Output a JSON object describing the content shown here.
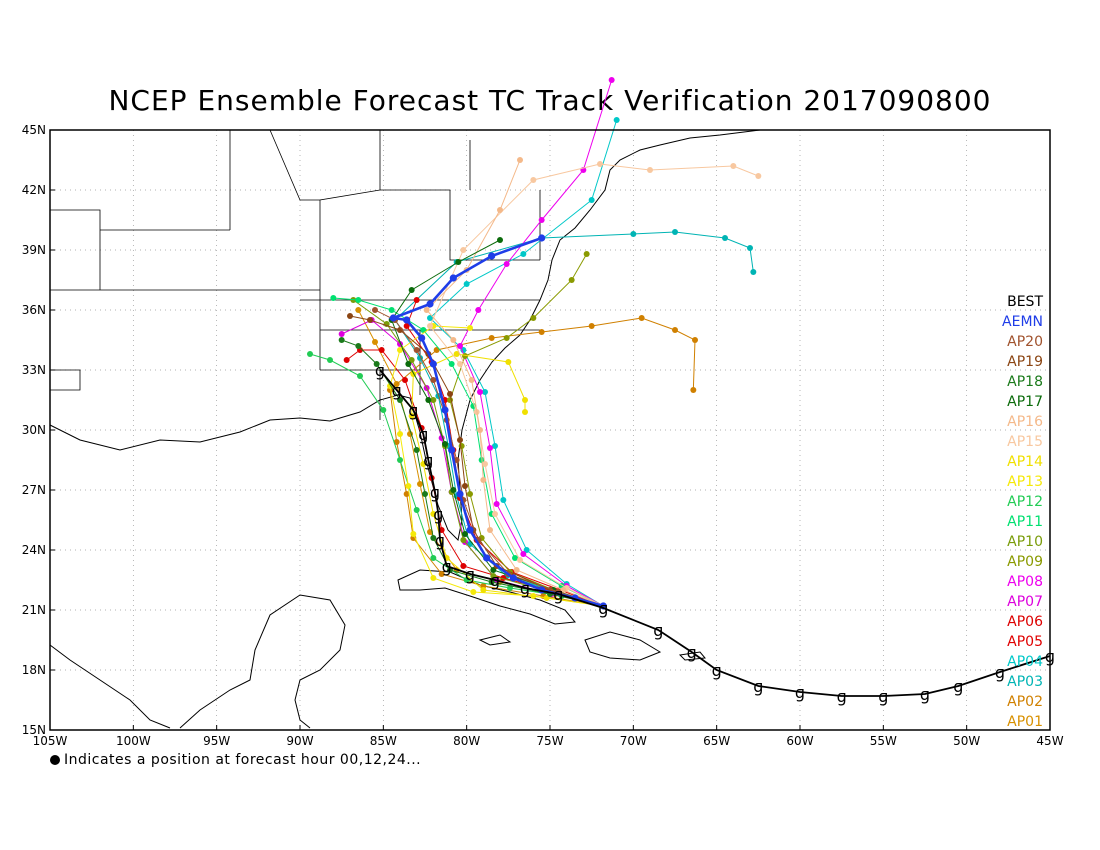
{
  "title": "NCEP Ensemble Forecast TC Track Verification 2017090800",
  "footnote": "Indicates a position at forecast hour 00,12,24...",
  "lat_labels": [
    "45N",
    "42N",
    "39N",
    "36N",
    "33N",
    "30N",
    "27N",
    "24N",
    "21N",
    "18N",
    "15N"
  ],
  "lon_labels": [
    "105W",
    "100W",
    "95W",
    "90W",
    "85W",
    "80W",
    "75W",
    "70W",
    "65W",
    "60W",
    "55W",
    "50W",
    "45W"
  ],
  "legend": [
    {
      "label": "BEST",
      "color": "#000000"
    },
    {
      "label": "AEMN",
      "color": "#1f3de8"
    },
    {
      "label": "AP20",
      "color": "#a0522d"
    },
    {
      "label": "AP19",
      "color": "#8b4513"
    },
    {
      "label": "AP18",
      "color": "#1b7a1b"
    },
    {
      "label": "AP17",
      "color": "#0b6b0b"
    },
    {
      "label": "AP16",
      "color": "#f4b98a"
    },
    {
      "label": "AP15",
      "color": "#f8c8a0"
    },
    {
      "label": "AP14",
      "color": "#f0e000"
    },
    {
      "label": "AP13",
      "color": "#f5e90a"
    },
    {
      "label": "AP12",
      "color": "#22cc55"
    },
    {
      "label": "AP11",
      "color": "#00e070"
    },
    {
      "label": "AP10",
      "color": "#7a9c0a"
    },
    {
      "label": "AP09",
      "color": "#8a9a00"
    },
    {
      "label": "AP08",
      "color": "#ee00ee"
    },
    {
      "label": "AP07",
      "color": "#dd00dd"
    },
    {
      "label": "AP06",
      "color": "#dd0000"
    },
    {
      "label": "AP05",
      "color": "#e00000"
    },
    {
      "label": "AP04",
      "color": "#00c8c8"
    },
    {
      "label": "AP03",
      "color": "#00b4b4"
    },
    {
      "label": "AP02",
      "color": "#d08000"
    },
    {
      "label": "AP01",
      "color": "#d89000"
    }
  ],
  "colors": {
    "grid": "#999999",
    "coast": "#000000",
    "frame": "#000000"
  },
  "tracks": [
    {
      "name": "BEST",
      "color": "#000000",
      "width": 1.8,
      "hurricane_symbols": true,
      "points": [
        [
          -45,
          18.7
        ],
        [
          -48,
          17.9
        ],
        [
          -50.5,
          17.2
        ],
        [
          -52.5,
          16.8
        ],
        [
          -55,
          16.7
        ],
        [
          -57.5,
          16.7
        ],
        [
          -60,
          16.9
        ],
        [
          -62.5,
          17.2
        ],
        [
          -65,
          18.0
        ],
        [
          -66.5,
          18.9
        ],
        [
          -68.5,
          20.0
        ],
        [
          -71.8,
          21.1
        ],
        [
          -74.5,
          21.8
        ],
        [
          -76.5,
          22.1
        ],
        [
          -78.3,
          22.5
        ],
        [
          -79.8,
          22.8
        ],
        [
          -81.2,
          23.2
        ],
        [
          -81.6,
          24.5
        ],
        [
          -81.7,
          25.8
        ],
        [
          -81.9,
          26.9
        ],
        [
          -82.3,
          28.5
        ],
        [
          -82.6,
          29.8
        ],
        [
          -83.2,
          31.0
        ],
        [
          -84.2,
          32.0
        ],
        [
          -85.2,
          33.0
        ]
      ]
    },
    {
      "name": "AEMN",
      "color": "#1f3de8",
      "width": 2.6,
      "points": [
        [
          -71.8,
          21.2
        ],
        [
          -73.5,
          21.6
        ],
        [
          -75.5,
          22.0
        ],
        [
          -77.2,
          22.6
        ],
        [
          -78.8,
          23.6
        ],
        [
          -79.8,
          25.0
        ],
        [
          -80.4,
          26.8
        ],
        [
          -80.9,
          29.0
        ],
        [
          -81.3,
          31.0
        ],
        [
          -82.0,
          33.3
        ],
        [
          -82.7,
          34.6
        ],
        [
          -83.6,
          35.5
        ],
        [
          -84.4,
          35.6
        ],
        [
          -82.2,
          36.3
        ],
        [
          -80.8,
          37.6
        ],
        [
          -78.5,
          38.7
        ],
        [
          -75.5,
          39.6
        ]
      ]
    },
    {
      "name": "AP20",
      "color": "#a0522d",
      "width": 1,
      "points": [
        [
          -71.8,
          21.2
        ],
        [
          -74.5,
          21.9
        ],
        [
          -77.5,
          22.8
        ],
        [
          -79.3,
          24.5
        ],
        [
          -80.2,
          26.5
        ],
        [
          -80.6,
          28.5
        ],
        [
          -81.2,
          30.5
        ],
        [
          -82.0,
          32.5
        ],
        [
          -83.0,
          34.0
        ],
        [
          -84.3,
          35.5
        ],
        [
          -85.5,
          36.0
        ]
      ]
    },
    {
      "name": "AP19",
      "color": "#8b4513",
      "width": 1,
      "points": [
        [
          -71.8,
          21.2
        ],
        [
          -75,
          22.0
        ],
        [
          -78.2,
          23.2
        ],
        [
          -79.6,
          25.0
        ],
        [
          -80.1,
          27.2
        ],
        [
          -80.4,
          29.5
        ],
        [
          -81.0,
          31.8
        ],
        [
          -82.3,
          33.8
        ],
        [
          -84.0,
          35.0
        ],
        [
          -85.8,
          35.5
        ],
        [
          -87.0,
          35.7
        ]
      ]
    },
    {
      "name": "AP18",
      "color": "#1b7a1b",
      "width": 1,
      "points": [
        [
          -71.8,
          21.2
        ],
        [
          -75,
          21.8
        ],
        [
          -78.5,
          22.4
        ],
        [
          -81.0,
          23.0
        ],
        [
          -82.0,
          24.6
        ],
        [
          -82.5,
          26.8
        ],
        [
          -83.0,
          29.0
        ],
        [
          -84.0,
          31.5
        ],
        [
          -85.4,
          33.3
        ],
        [
          -86.5,
          34.2
        ],
        [
          -87.5,
          34.5
        ]
      ]
    },
    {
      "name": "AP17",
      "color": "#0b6b0b",
      "width": 1,
      "points": [
        [
          -71.8,
          21.2
        ],
        [
          -74.8,
          22.0
        ],
        [
          -78.4,
          23.0
        ],
        [
          -80.1,
          24.8
        ],
        [
          -80.8,
          27.0
        ],
        [
          -81.3,
          29.3
        ],
        [
          -82.3,
          31.5
        ],
        [
          -83.5,
          33.3
        ],
        [
          -84.5,
          35.5
        ],
        [
          -83.3,
          37.0
        ],
        [
          -80.5,
          38.4
        ],
        [
          -78.0,
          39.5
        ]
      ]
    },
    {
      "name": "AP16",
      "color": "#f4b98a",
      "width": 1,
      "points": [
        [
          -71.8,
          21.2
        ],
        [
          -74.2,
          22.0
        ],
        [
          -77.0,
          23.0
        ],
        [
          -78.6,
          25.0
        ],
        [
          -79.0,
          27.5
        ],
        [
          -79.2,
          30.0
        ],
        [
          -79.7,
          32.5
        ],
        [
          -80.8,
          34.5
        ],
        [
          -82.4,
          36.0
        ],
        [
          -80.0,
          38.0
        ],
        [
          -78.0,
          41.0
        ],
        [
          -76.8,
          43.5
        ]
      ]
    },
    {
      "name": "AP15",
      "color": "#f8c8a0",
      "width": 1,
      "points": [
        [
          -71.8,
          21.2
        ],
        [
          -74.0,
          22.1
        ],
        [
          -76.8,
          23.5
        ],
        [
          -78.3,
          25.8
        ],
        [
          -78.9,
          28.3
        ],
        [
          -79.4,
          30.9
        ],
        [
          -80.4,
          33.3
        ],
        [
          -82.2,
          35.2
        ],
        [
          -80.2,
          39.0
        ],
        [
          -76.0,
          42.5
        ],
        [
          -72.0,
          43.3
        ],
        [
          -69.0,
          43.0
        ],
        [
          -64.0,
          43.2
        ],
        [
          -62.5,
          42.7
        ]
      ]
    },
    {
      "name": "AP14",
      "color": "#f0e000",
      "width": 1,
      "points": [
        [
          -71.8,
          21.2
        ],
        [
          -75.2,
          21.6
        ],
        [
          -79.0,
          22.0
        ],
        [
          -81.2,
          23.6
        ],
        [
          -82.0,
          25.8
        ],
        [
          -82.6,
          28.3
        ],
        [
          -83.3,
          30.7
        ],
        [
          -83.2,
          32.8
        ],
        [
          -80.6,
          33.8
        ],
        [
          -77.5,
          33.4
        ],
        [
          -76.5,
          31.5
        ],
        [
          -76.5,
          30.9
        ]
      ]
    },
    {
      "name": "AP13",
      "color": "#f5e90a",
      "width": 1,
      "points": [
        [
          -71.8,
          21.2
        ],
        [
          -76.0,
          21.7
        ],
        [
          -79.6,
          21.9
        ],
        [
          -82.0,
          22.6
        ],
        [
          -83.2,
          24.8
        ],
        [
          -83.5,
          27.2
        ],
        [
          -84.0,
          29.8
        ],
        [
          -84.6,
          32.2
        ],
        [
          -84.0,
          34.0
        ],
        [
          -82.0,
          35.2
        ],
        [
          -79.8,
          35.1
        ]
      ]
    },
    {
      "name": "AP12",
      "color": "#22cc55",
      "width": 1,
      "points": [
        [
          -71.8,
          21.2
        ],
        [
          -74.3,
          21.7
        ],
        [
          -77.4,
          22.1
        ],
        [
          -80.0,
          22.5
        ],
        [
          -82.0,
          23.6
        ],
        [
          -83.0,
          26.0
        ],
        [
          -84.0,
          28.5
        ],
        [
          -85.0,
          31.0
        ],
        [
          -86.4,
          32.7
        ],
        [
          -88.2,
          33.5
        ],
        [
          -89.4,
          33.8
        ]
      ]
    },
    {
      "name": "AP11",
      "color": "#00e070",
      "width": 1,
      "points": [
        [
          -71.8,
          21.2
        ],
        [
          -74.3,
          22.2
        ],
        [
          -77.1,
          23.6
        ],
        [
          -78.5,
          25.8
        ],
        [
          -79.1,
          28.5
        ],
        [
          -79.6,
          31.2
        ],
        [
          -80.9,
          33.3
        ],
        [
          -82.6,
          35.0
        ],
        [
          -84.5,
          36.0
        ],
        [
          -86.5,
          36.5
        ],
        [
          -88.0,
          36.6
        ]
      ]
    },
    {
      "name": "AP10",
      "color": "#7a9c0a",
      "width": 1,
      "points": [
        [
          -71.8,
          21.2
        ],
        [
          -75.0,
          21.9
        ],
        [
          -78.4,
          22.7
        ],
        [
          -80.2,
          24.5
        ],
        [
          -80.9,
          26.9
        ],
        [
          -81.3,
          29.2
        ],
        [
          -82.0,
          31.5
        ],
        [
          -83.3,
          33.5
        ],
        [
          -84.8,
          35.3
        ],
        [
          -86.8,
          36.5
        ]
      ]
    },
    {
      "name": "AP09",
      "color": "#8a9a00",
      "width": 1,
      "points": [
        [
          -71.8,
          21.2
        ],
        [
          -74.5,
          21.9
        ],
        [
          -77.4,
          22.9
        ],
        [
          -79.1,
          24.6
        ],
        [
          -79.8,
          26.8
        ],
        [
          -80.3,
          29.2
        ],
        [
          -81.0,
          31.5
        ],
        [
          -80.1,
          33.7
        ],
        [
          -77.6,
          34.6
        ],
        [
          -76.0,
          35.6
        ],
        [
          -73.7,
          37.5
        ],
        [
          -72.8,
          38.8
        ]
      ]
    },
    {
      "name": "AP08",
      "color": "#ee00ee",
      "width": 1,
      "points": [
        [
          -71.8,
          21.2
        ],
        [
          -74.0,
          22.2
        ],
        [
          -76.6,
          23.8
        ],
        [
          -78.2,
          26.3
        ],
        [
          -78.6,
          29.1
        ],
        [
          -79.2,
          31.9
        ],
        [
          -80.4,
          34.2
        ],
        [
          -79.3,
          36.0
        ],
        [
          -77.6,
          38.3
        ],
        [
          -75.5,
          40.5
        ],
        [
          -73.0,
          43.0
        ],
        [
          -71.3,
          47.5
        ]
      ]
    },
    {
      "name": "AP07",
      "color": "#dd00dd",
      "width": 1,
      "points": [
        [
          -71.8,
          21.2
        ],
        [
          -74.9,
          21.8
        ],
        [
          -78.2,
          22.5
        ],
        [
          -80.1,
          24.4
        ],
        [
          -80.9,
          26.9
        ],
        [
          -81.5,
          29.6
        ],
        [
          -82.4,
          32.1
        ],
        [
          -84.0,
          34.3
        ],
        [
          -85.7,
          35.5
        ],
        [
          -87.5,
          34.8
        ]
      ]
    },
    {
      "name": "AP06",
      "color": "#dd0000",
      "width": 1,
      "points": [
        [
          -71.8,
          21.2
        ],
        [
          -74.6,
          21.9
        ],
        [
          -77.8,
          22.6
        ],
        [
          -80.2,
          23.2
        ],
        [
          -81.5,
          25.0
        ],
        [
          -82.1,
          27.6
        ],
        [
          -82.7,
          30.1
        ],
        [
          -83.7,
          32.5
        ],
        [
          -85.1,
          34.0
        ],
        [
          -86.4,
          34.0
        ],
        [
          -87.2,
          33.5
        ]
      ]
    },
    {
      "name": "AP05",
      "color": "#e00000",
      "width": 1,
      "points": [
        [
          -71.8,
          21.2
        ],
        [
          -74.4,
          22.0
        ],
        [
          -77.3,
          22.9
        ],
        [
          -79.4,
          24.5
        ],
        [
          -80.4,
          26.6
        ],
        [
          -80.8,
          29.0
        ],
        [
          -81.3,
          31.5
        ],
        [
          -82.1,
          33.4
        ],
        [
          -83.6,
          35.2
        ],
        [
          -83.0,
          36.5
        ]
      ]
    },
    {
      "name": "AP04",
      "color": "#00c8c8",
      "width": 1,
      "points": [
        [
          -71.8,
          21.2
        ],
        [
          -74.0,
          22.3
        ],
        [
          -76.4,
          24.0
        ],
        [
          -77.8,
          26.5
        ],
        [
          -78.3,
          29.2
        ],
        [
          -78.9,
          31.9
        ],
        [
          -80.2,
          34.0
        ],
        [
          -82.2,
          35.6
        ],
        [
          -80.0,
          37.3
        ],
        [
          -76.6,
          38.8
        ],
        [
          -72.5,
          41.5
        ],
        [
          -71.0,
          45.5
        ]
      ]
    },
    {
      "name": "AP03",
      "color": "#00b4b4",
      "width": 1,
      "points": [
        [
          -71.8,
          21.2
        ],
        [
          -74.6,
          21.9
        ],
        [
          -77.6,
          22.7
        ],
        [
          -79.8,
          24.3
        ],
        [
          -80.6,
          26.7
        ],
        [
          -81.1,
          29.2
        ],
        [
          -81.7,
          31.7
        ],
        [
          -82.8,
          33.6
        ],
        [
          -84.3,
          35.5
        ],
        [
          -80.6,
          38.4
        ],
        [
          -75.5,
          39.6
        ],
        [
          -70.0,
          39.8
        ],
        [
          -67.5,
          39.9
        ],
        [
          -64.5,
          39.6
        ],
        [
          -63.0,
          39.1
        ],
        [
          -62.8,
          37.9
        ]
      ]
    },
    {
      "name": "AP02",
      "color": "#d08000",
      "width": 1,
      "points": [
        [
          -71.8,
          21.2
        ],
        [
          -75.4,
          21.7
        ],
        [
          -79.0,
          22.2
        ],
        [
          -81.5,
          22.8
        ],
        [
          -83.2,
          24.6
        ],
        [
          -83.6,
          26.8
        ],
        [
          -84.2,
          29.4
        ],
        [
          -84.6,
          32.0
        ],
        [
          -81.8,
          34.0
        ],
        [
          -78.5,
          34.6
        ],
        [
          -75.5,
          34.9
        ],
        [
          -72.5,
          35.2
        ],
        [
          -69.5,
          35.6
        ],
        [
          -67.5,
          35.0
        ],
        [
          -66.3,
          34.5
        ],
        [
          -66.4,
          32.0
        ]
      ]
    },
    {
      "name": "AP01",
      "color": "#d89000",
      "width": 1,
      "points": [
        [
          -71.8,
          21.2
        ],
        [
          -74.7,
          21.8
        ],
        [
          -78.0,
          22.4
        ],
        [
          -80.6,
          23.0
        ],
        [
          -82.2,
          24.9
        ],
        [
          -82.8,
          27.3
        ],
        [
          -83.4,
          29.8
        ],
        [
          -84.2,
          32.3
        ],
        [
          -85.5,
          34.4
        ],
        [
          -86.5,
          36.0
        ]
      ]
    }
  ]
}
